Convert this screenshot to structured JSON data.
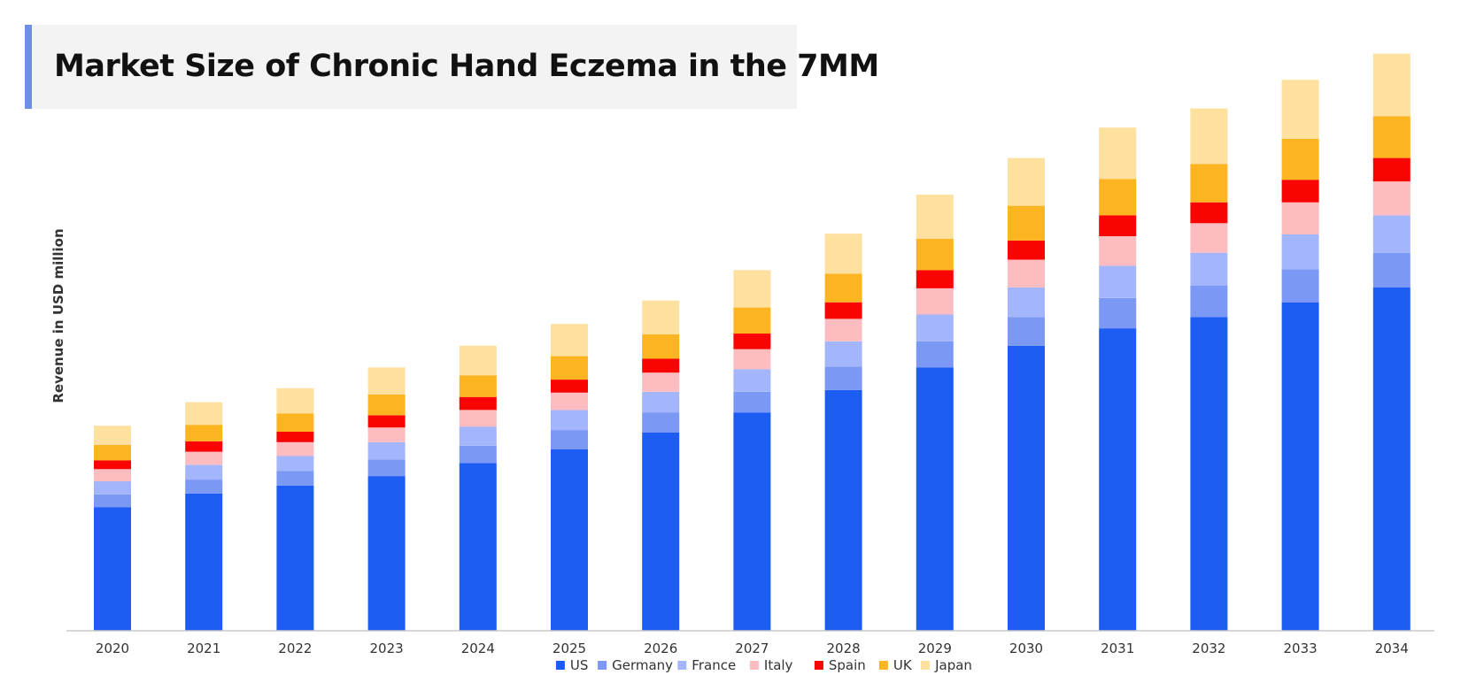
{
  "chart_data": {
    "type": "bar",
    "stacked": true,
    "title": "Market Size of Chronic Hand Eczema in the 7MM",
    "xlabel": "",
    "ylabel": "Revenue in USD million",
    "grid": false,
    "legend_position": "bottom",
    "categories": [
      "2020",
      "2021",
      "2022",
      "2023",
      "2024",
      "2025",
      "2026",
      "2027",
      "2028",
      "2029",
      "2030",
      "2031",
      "2032",
      "2033",
      "2034"
    ],
    "series": [
      {
        "name": "US",
        "color": "#1c5cf2",
        "values": [
          142,
          158,
          167,
          178,
          193,
          209,
          228,
          251,
          277,
          303,
          328,
          348,
          361,
          378,
          395
        ]
      },
      {
        "name": "Germany",
        "color": "#7b98f5",
        "values": [
          15,
          16,
          17,
          19,
          20,
          22,
          23,
          24,
          27,
          30,
          33,
          35,
          36,
          38,
          40
        ]
      },
      {
        "name": "France",
        "color": "#a3b5fb",
        "values": [
          15,
          17,
          17,
          20,
          22,
          23,
          24,
          26,
          29,
          31,
          34,
          37,
          38,
          40,
          43
        ]
      },
      {
        "name": "Italy",
        "color": "#fdbcbf",
        "values": [
          14,
          15,
          16,
          17,
          19,
          20,
          22,
          23,
          26,
          30,
          32,
          34,
          34,
          37,
          39
        ]
      },
      {
        "name": "Spain",
        "color": "#f90303",
        "values": [
          10,
          12,
          12,
          14,
          15,
          15,
          16,
          18,
          19,
          21,
          22,
          24,
          24,
          26,
          27
        ]
      },
      {
        "name": "UK",
        "color": "#fdb421",
        "values": [
          18,
          19,
          21,
          24,
          25,
          27,
          28,
          30,
          33,
          36,
          40,
          42,
          44,
          47,
          48
        ]
      },
      {
        "name": "Japan",
        "color": "#fee19f",
        "values": [
          22,
          26,
          29,
          31,
          34,
          37,
          39,
          43,
          46,
          51,
          55,
          59,
          64,
          68,
          72
        ]
      }
    ],
    "ylim": [
      0,
      680
    ]
  }
}
